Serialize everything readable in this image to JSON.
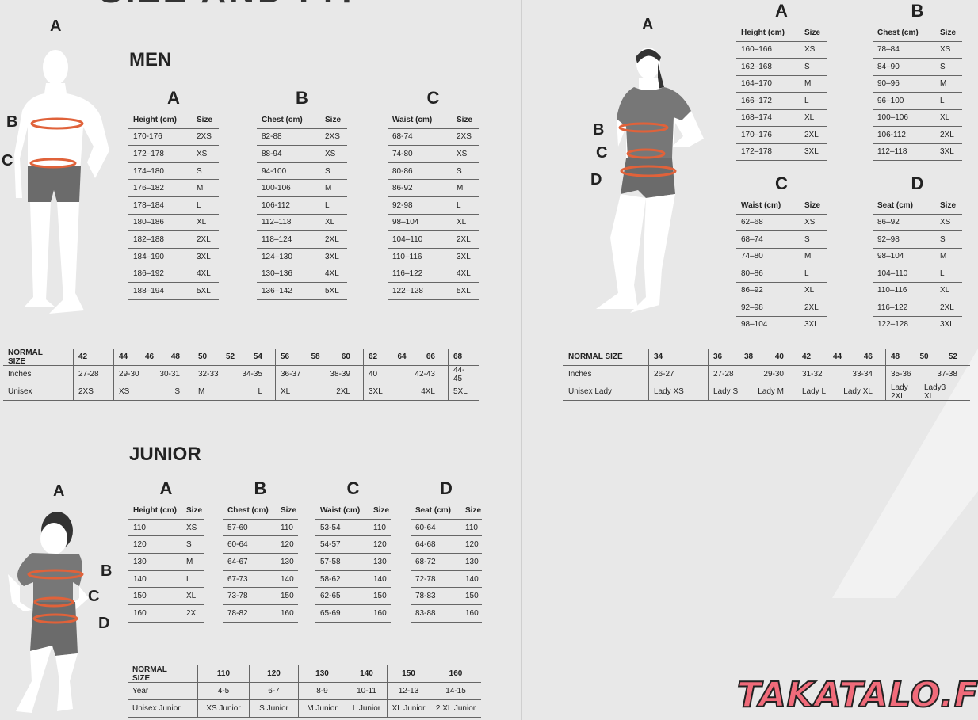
{
  "title": "SIZE AND FIT",
  "men": {
    "heading": "MEN",
    "figure_labels": [
      "A",
      "B",
      "C"
    ],
    "tables": [
      {
        "letter": "A",
        "columns": [
          "Height (cm)",
          "Size"
        ],
        "rows": [
          [
            "170-176",
            "2XS"
          ],
          [
            "172–178",
            "XS"
          ],
          [
            "174–180",
            "S"
          ],
          [
            "176–182",
            "M"
          ],
          [
            "178–184",
            "L"
          ],
          [
            "180–186",
            "XL"
          ],
          [
            "182–188",
            "2XL"
          ],
          [
            "184–190",
            "3XL"
          ],
          [
            "186–192",
            "4XL"
          ],
          [
            "188–194",
            "5XL"
          ]
        ]
      },
      {
        "letter": "B",
        "columns": [
          "Chest (cm)",
          "Size"
        ],
        "rows": [
          [
            "82-88",
            "2XS"
          ],
          [
            "88-94",
            "XS"
          ],
          [
            "94-100",
            "S"
          ],
          [
            "100-106",
            "M"
          ],
          [
            "106-112",
            "L"
          ],
          [
            "112–118",
            "XL"
          ],
          [
            "118–124",
            "2XL"
          ],
          [
            "124–130",
            "3XL"
          ],
          [
            "130–136",
            "4XL"
          ],
          [
            "136–142",
            "5XL"
          ]
        ]
      },
      {
        "letter": "C",
        "columns": [
          "Waist (cm)",
          "Size"
        ],
        "rows": [
          [
            "68-74",
            "2XS"
          ],
          [
            "74-80",
            "XS"
          ],
          [
            "80-86",
            "S"
          ],
          [
            "86-92",
            "M"
          ],
          [
            "92-98",
            "L"
          ],
          [
            "98–104",
            "XL"
          ],
          [
            "104–110",
            "2XL"
          ],
          [
            "110–116",
            "3XL"
          ],
          [
            "116–122",
            "4XL"
          ],
          [
            "122–128",
            "5XL"
          ]
        ]
      }
    ],
    "normal": {
      "rows": [
        [
          [
            "NORMAL SIZE"
          ],
          [
            "42"
          ],
          [
            "44",
            "46",
            "48"
          ],
          [
            "50",
            "52",
            "54"
          ],
          [
            "56",
            "58",
            "60"
          ],
          [
            "62",
            "64",
            "66"
          ],
          [
            "68"
          ]
        ],
        [
          [
            "Inches"
          ],
          [
            "27-28"
          ],
          [
            "29-30",
            "30-31"
          ],
          [
            "32-33",
            "34-35"
          ],
          [
            "36-37",
            "38-39"
          ],
          [
            "40",
            "42-43"
          ],
          [
            "44-45"
          ]
        ],
        [
          [
            "Unisex"
          ],
          [
            "2XS"
          ],
          [
            "XS",
            "S"
          ],
          [
            "M",
            "L"
          ],
          [
            "XL",
            "2XL"
          ],
          [
            "3XL",
            "4XL"
          ],
          [
            "5XL"
          ]
        ]
      ]
    }
  },
  "women": {
    "figure_labels": [
      "A",
      "B",
      "C",
      "D"
    ],
    "tables": [
      {
        "letter": "A",
        "columns": [
          "Height (cm)",
          "Size"
        ],
        "rows": [
          [
            "160–166",
            "XS"
          ],
          [
            "162–168",
            "S"
          ],
          [
            "164–170",
            "M"
          ],
          [
            "166–172",
            "L"
          ],
          [
            "168–174",
            "XL"
          ],
          [
            "170–176",
            "2XL"
          ],
          [
            "172–178",
            "3XL"
          ]
        ]
      },
      {
        "letter": "B",
        "columns": [
          "Chest (cm)",
          "Size"
        ],
        "rows": [
          [
            "78–84",
            "XS"
          ],
          [
            "84–90",
            "S"
          ],
          [
            "90–96",
            "M"
          ],
          [
            "96–100",
            "L"
          ],
          [
            "100–106",
            "XL"
          ],
          [
            "106-112",
            "2XL"
          ],
          [
            "112–118",
            "3XL"
          ]
        ]
      },
      {
        "letter": "C",
        "columns": [
          "Waist (cm)",
          "Size"
        ],
        "rows": [
          [
            "62–68",
            "XS"
          ],
          [
            "68–74",
            "S"
          ],
          [
            "74–80",
            "M"
          ],
          [
            "80–86",
            "L"
          ],
          [
            "86–92",
            "XL"
          ],
          [
            "92–98",
            "2XL"
          ],
          [
            "98–104",
            "3XL"
          ]
        ]
      },
      {
        "letter": "D",
        "columns": [
          "Seat (cm)",
          "Size"
        ],
        "rows": [
          [
            "86–92",
            "XS"
          ],
          [
            "92–98",
            "S"
          ],
          [
            "98–104",
            "M"
          ],
          [
            "104–110",
            "L"
          ],
          [
            "110–116",
            "XL"
          ],
          [
            "116–122",
            "2XL"
          ],
          [
            "122–128",
            "3XL"
          ]
        ]
      }
    ],
    "normal": {
      "rows": [
        [
          [
            "NORMAL SIZE"
          ],
          [
            "34"
          ],
          [
            "36",
            "38",
            "40"
          ],
          [
            "42",
            "44",
            "46"
          ],
          [
            "48",
            "50",
            "52"
          ]
        ],
        [
          [
            "Inches"
          ],
          [
            "26-27"
          ],
          [
            "27-28",
            "29-30"
          ],
          [
            "31-32",
            "33-34"
          ],
          [
            "35-36",
            "37-38"
          ]
        ],
        [
          [
            "Unisex Lady"
          ],
          [
            "Lady XS"
          ],
          [
            "Lady S",
            "Lady M"
          ],
          [
            "Lady L",
            "Lady XL"
          ],
          [
            "Lady 2XL",
            "Lady3 XL"
          ]
        ]
      ]
    }
  },
  "junior": {
    "heading": "JUNIOR",
    "figure_labels": [
      "A",
      "B",
      "C",
      "D"
    ],
    "tables": [
      {
        "letter": "A",
        "columns": [
          "Height (cm)",
          "Size"
        ],
        "rows": [
          [
            "110",
            "XS"
          ],
          [
            "120",
            "S"
          ],
          [
            "130",
            "M"
          ],
          [
            "140",
            "L"
          ],
          [
            "150",
            "XL"
          ],
          [
            "160",
            "2XL"
          ]
        ]
      },
      {
        "letter": "B",
        "columns": [
          "Chest (cm)",
          "Size"
        ],
        "rows": [
          [
            "57-60",
            "110"
          ],
          [
            "60-64",
            "120"
          ],
          [
            "64-67",
            "130"
          ],
          [
            "67-73",
            "140"
          ],
          [
            "73-78",
            "150"
          ],
          [
            "78-82",
            "160"
          ]
        ]
      },
      {
        "letter": "C",
        "columns": [
          "Waist (cm)",
          "Size"
        ],
        "rows": [
          [
            "53-54",
            "110"
          ],
          [
            "54-57",
            "120"
          ],
          [
            "57-58",
            "130"
          ],
          [
            "58-62",
            "140"
          ],
          [
            "62-65",
            "150"
          ],
          [
            "65-69",
            "160"
          ]
        ]
      },
      {
        "letter": "D",
        "columns": [
          "Seat (cm)",
          "Size"
        ],
        "rows": [
          [
            "60-64",
            "110"
          ],
          [
            "64-68",
            "120"
          ],
          [
            "68-72",
            "130"
          ],
          [
            "72-78",
            "140"
          ],
          [
            "78-83",
            "150"
          ],
          [
            "83-88",
            "160"
          ]
        ]
      }
    ],
    "normal": {
      "rows": [
        [
          [
            "NORMAL SIZE"
          ],
          [
            "110"
          ],
          [
            "120"
          ],
          [
            "130"
          ],
          [
            "140"
          ],
          [
            "150"
          ],
          [
            "160"
          ]
        ],
        [
          [
            "Year"
          ],
          [
            "4-5"
          ],
          [
            "6-7"
          ],
          [
            "8-9"
          ],
          [
            "10-11"
          ],
          [
            "12-13"
          ],
          [
            "14-15"
          ]
        ],
        [
          [
            "Unisex Junior"
          ],
          [
            "XS Junior"
          ],
          [
            "S Junior"
          ],
          [
            "M Junior"
          ],
          [
            "L Junior"
          ],
          [
            "XL Junior"
          ],
          [
            "2 XL Junior"
          ]
        ]
      ]
    }
  },
  "watermark": "TAKATALO.FI"
}
